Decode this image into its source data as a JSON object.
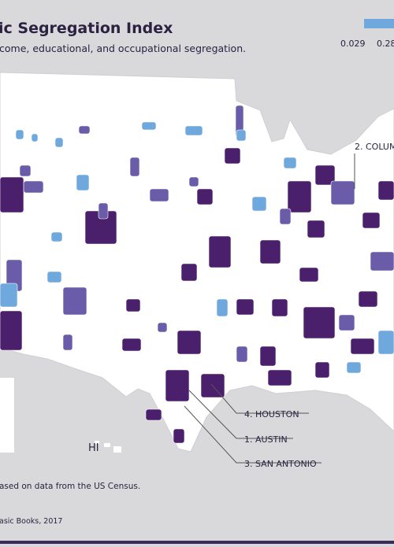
{
  "header": {
    "title": "ic Segregation Index",
    "subtitle": "come, educational, and occupational segregation."
  },
  "legend": {
    "labels": [
      "0.029",
      "0.28"
    ]
  },
  "callouts": [
    "2. COLUM",
    "4. HOUSTON",
    "1. AUSTIN",
    "3. SAN ANTONIO"
  ],
  "map_labels": [
    "HI"
  ],
  "footer": {
    "source": "ased on data from the US Census.",
    "credit": "asic Books, 2017"
  }
}
